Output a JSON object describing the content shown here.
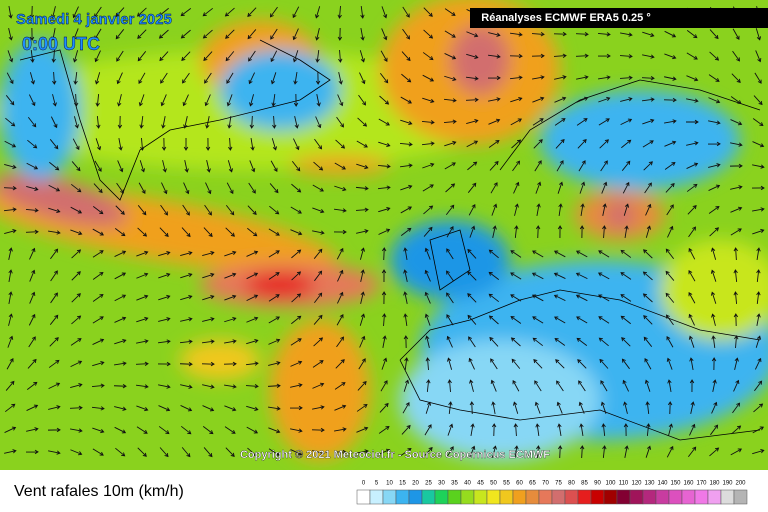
{
  "header": {
    "date": "Samedi 4 janvier 2025",
    "time": "0:00 UTC",
    "source": "Réanalyses ECMWF ERA5 0.25 °"
  },
  "copyright": "Copyright © 2021 Meteociel.fr - Source Copernicus ECMWF",
  "legend": {
    "title": "Vent rafales 10m (km/h)",
    "levels": [
      0,
      5,
      10,
      15,
      20,
      25,
      30,
      35,
      40,
      45,
      50,
      55,
      60,
      65,
      70,
      75,
      80,
      85,
      90,
      100,
      110,
      120,
      130,
      140,
      150,
      160,
      170,
      180,
      190,
      200
    ],
    "colors": [
      "#ffffff",
      "#c8f0ff",
      "#87d7f5",
      "#3cb4f0",
      "#1e96e6",
      "#19c8a0",
      "#1ed25a",
      "#5ad21e",
      "#96dc1e",
      "#c8e61e",
      "#f0e61e",
      "#f0c81e",
      "#f0a01e",
      "#e68c3c",
      "#e6785a",
      "#d26e6e",
      "#dc5050",
      "#e61e1e",
      "#c80000",
      "#a00000",
      "#820032",
      "#a0145a",
      "#b4287d",
      "#c83ca0",
      "#dc50be",
      "#e664d2",
      "#f078e6",
      "#f0a0f0",
      "#dcdcdc",
      "#b4b4b4"
    ]
  }
}
